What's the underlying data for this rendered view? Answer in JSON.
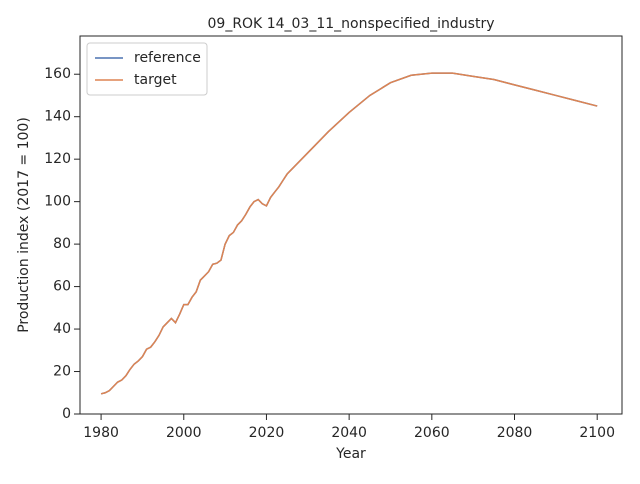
{
  "chart_data": {
    "type": "line",
    "title": "09_ROK 14_03_11_nonspecified_industry",
    "xlabel": "Year",
    "ylabel": "Production index (2017 = 100)",
    "x": [
      1980,
      1981,
      1982,
      1983,
      1984,
      1985,
      1986,
      1987,
      1988,
      1989,
      1990,
      1991,
      1992,
      1993,
      1994,
      1995,
      1996,
      1997,
      1998,
      1999,
      2000,
      2001,
      2002,
      2003,
      2004,
      2005,
      2006,
      2007,
      2008,
      2009,
      2010,
      2011,
      2012,
      2013,
      2014,
      2015,
      2016,
      2017,
      2018,
      2019,
      2020,
      2021,
      2022,
      2023,
      2024,
      2025,
      2030,
      2035,
      2040,
      2045,
      2050,
      2055,
      2060,
      2065,
      2070,
      2075,
      2080,
      2085,
      2090,
      2095,
      2100
    ],
    "series": [
      {
        "name": "reference",
        "color": "#4c72b0",
        "values": [
          9.5,
          10,
          11,
          13,
          15,
          16,
          18,
          21,
          23.5,
          25,
          27,
          30.5,
          31.5,
          34,
          37,
          41,
          43,
          45,
          43,
          47,
          51.5,
          51.5,
          55,
          57.5,
          63,
          65,
          67,
          70.5,
          71,
          72.5,
          80,
          84,
          85.5,
          89,
          91,
          94,
          97.5,
          100,
          101,
          99,
          98,
          102,
          104.5,
          107,
          110,
          113,
          123,
          133,
          142,
          150,
          156,
          159.5,
          160.5,
          160.5,
          159,
          157.5,
          155,
          152.5,
          150,
          147.5,
          145
        ]
      },
      {
        "name": "target",
        "color": "#dd8452",
        "values": [
          9.5,
          10,
          11,
          13,
          15,
          16,
          18,
          21,
          23.5,
          25,
          27,
          30.5,
          31.5,
          34,
          37,
          41,
          43,
          45,
          43,
          47,
          51.5,
          51.5,
          55,
          57.5,
          63,
          65,
          67,
          70.5,
          71,
          72.5,
          80,
          84,
          85.5,
          89,
          91,
          94,
          97.5,
          100,
          101,
          99,
          98,
          102,
          104.5,
          107,
          110,
          113,
          123,
          133,
          142,
          150,
          156,
          159.5,
          160.5,
          160.5,
          159,
          157.5,
          155,
          152.5,
          150,
          147.5,
          145
        ]
      }
    ],
    "xlim": [
      1974.9,
      2106
    ],
    "ylim": [
      0,
      178
    ],
    "xticks": [
      1980,
      2000,
      2020,
      2040,
      2060,
      2080,
      2100
    ],
    "yticks": [
      0,
      20,
      40,
      60,
      80,
      100,
      120,
      140,
      160
    ],
    "legend": "upper left"
  }
}
